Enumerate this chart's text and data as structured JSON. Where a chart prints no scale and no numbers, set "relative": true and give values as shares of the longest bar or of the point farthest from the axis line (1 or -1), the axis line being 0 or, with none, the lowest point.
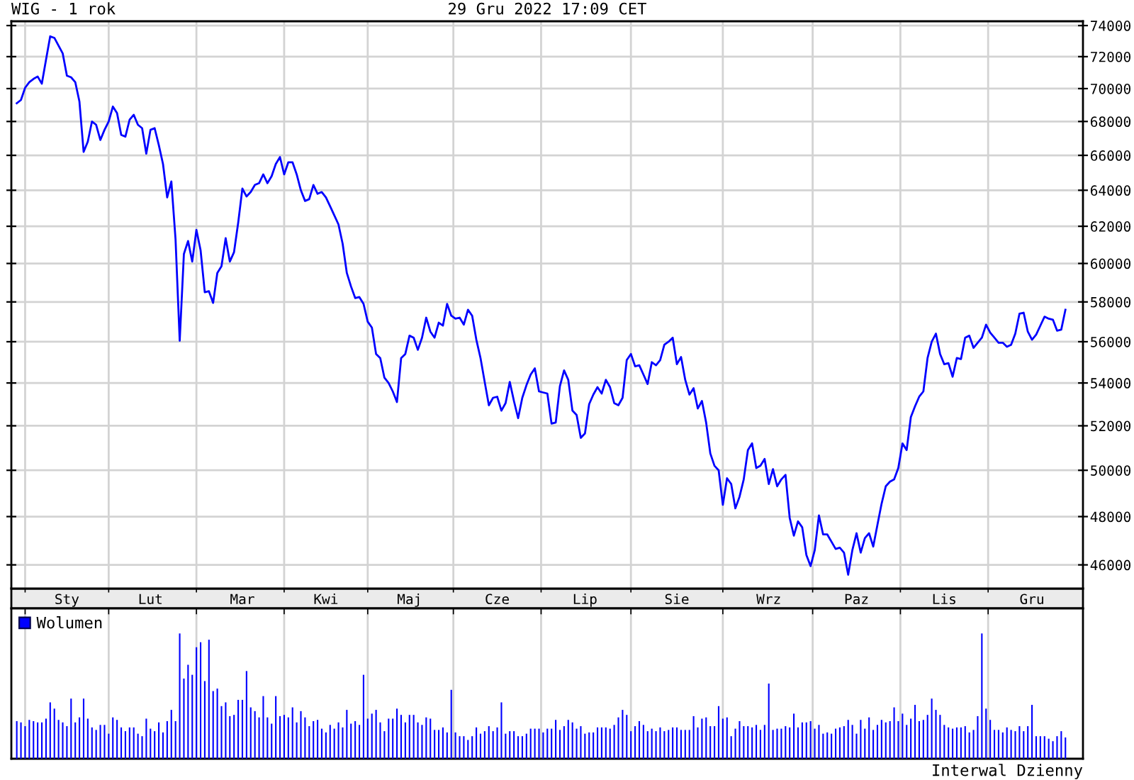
{
  "chart_data": [
    {
      "type": "line",
      "title": "WIG - 1 rok",
      "subtitle": "29 Gru 2022 17:09 CET",
      "categories": [
        null,
        null,
        null,
        null,
        null,
        null,
        null,
        null,
        null,
        null,
        null,
        null,
        "Sty",
        null,
        null,
        null,
        null,
        null,
        null,
        null,
        null,
        null,
        null,
        null,
        null,
        null,
        null,
        null,
        null,
        null,
        null,
        null,
        "Lut",
        null,
        null,
        null,
        null,
        null,
        null,
        null,
        null,
        null,
        null,
        null,
        null,
        null,
        null,
        null,
        null,
        null,
        null,
        null,
        null,
        null,
        "Mar",
        null,
        null,
        null,
        null,
        null,
        null,
        null,
        null,
        null,
        null,
        null,
        null,
        null,
        null,
        null,
        null,
        null,
        null,
        null,
        "Kwi",
        null,
        null,
        null,
        null,
        null,
        null,
        null,
        null,
        null,
        null,
        null,
        null,
        null,
        null,
        null,
        null,
        null,
        null,
        null,
        "Maj",
        null,
        null,
        null,
        null,
        null,
        null,
        null,
        null,
        null,
        null,
        null,
        null,
        null,
        null,
        null,
        null,
        null,
        null,
        null,
        null,
        "Cze",
        null,
        null,
        null,
        null,
        null,
        null,
        null,
        null,
        null,
        null,
        null,
        null,
        null,
        null,
        null,
        null,
        null,
        null,
        null,
        null,
        "Lip",
        null,
        null,
        null,
        null,
        null,
        null,
        null,
        null,
        null,
        null,
        null,
        null,
        null,
        null,
        null,
        null,
        null,
        null,
        null,
        null,
        null,
        "Sie",
        null,
        null,
        null,
        null,
        null,
        null,
        null,
        null,
        null,
        null,
        null,
        null,
        null,
        null,
        null,
        null,
        null,
        null,
        null,
        null,
        null,
        "Wrz",
        null,
        null,
        null,
        null,
        null,
        null,
        null,
        null,
        null,
        null,
        null,
        null,
        null,
        null,
        null,
        null,
        null,
        null,
        null,
        null,
        "Paz",
        null,
        null,
        null,
        null,
        null,
        null,
        null,
        null,
        null,
        null,
        null,
        null,
        null,
        null,
        null,
        null,
        null,
        null,
        null,
        null,
        "Lis",
        null,
        null,
        null,
        null,
        null,
        null,
        null,
        null,
        null,
        null,
        null,
        null,
        null,
        null,
        null,
        null,
        null,
        null,
        null,
        null,
        "Gru",
        null,
        null,
        null,
        null,
        null,
        null,
        null,
        null
      ],
      "values": [
        69100,
        69300,
        70050,
        70400,
        70600,
        70750,
        70300,
        71800,
        73300,
        73200,
        72700,
        72200,
        70800,
        70700,
        70400,
        69200,
        66200,
        66800,
        68000,
        67800,
        66900,
        67500,
        68000,
        68900,
        68500,
        67200,
        67100,
        68100,
        68400,
        67800,
        67600,
        66100,
        67500,
        67600,
        66600,
        65500,
        63600,
        64500,
        61300,
        56050,
        60500,
        61200,
        60100,
        61800,
        60700,
        58500,
        58550,
        57950,
        59500,
        59850,
        61350,
        60100,
        60600,
        62200,
        64100,
        63650,
        63900,
        64300,
        64400,
        64900,
        64400,
        64800,
        65500,
        65900,
        64900,
        65600,
        65600,
        64900,
        64000,
        63400,
        63500,
        64300,
        63800,
        63900,
        63600,
        63100,
        62600,
        62100,
        61050,
        59500,
        58800,
        58200,
        58250,
        57900,
        57000,
        56700,
        55400,
        55200,
        54250,
        54000,
        53600,
        53100,
        55200,
        55400,
        56300,
        56200,
        55600,
        56200,
        57200,
        56500,
        56200,
        56950,
        56800,
        57900,
        57300,
        57150,
        57200,
        56850,
        57600,
        57300,
        56100,
        55200,
        54050,
        52950,
        53300,
        53350,
        52700,
        53050,
        54050,
        53150,
        52350,
        53300,
        53900,
        54400,
        54700,
        53600,
        53550,
        53500,
        52100,
        52150,
        53850,
        54600,
        54150,
        52700,
        52500,
        51450,
        51650,
        53000,
        53450,
        53800,
        53500,
        54150,
        53800,
        53050,
        52950,
        53300,
        55100,
        55400,
        54800,
        54850,
        54400,
        53950,
        55000,
        54850,
        55100,
        55850,
        56000,
        56200,
        54900,
        55250,
        54150,
        53450,
        53750,
        52800,
        53150,
        52150,
        50750,
        50200,
        50000,
        48500,
        49650,
        49400,
        48350,
        48850,
        49600,
        50900,
        51200,
        50100,
        50200,
        50500,
        49400,
        50050,
        49300,
        49600,
        49800,
        47950,
        47200,
        47800,
        47550,
        46400,
        45950,
        46600,
        48050,
        47250,
        47250,
        46950,
        46650,
        46700,
        46500,
        45600,
        46600,
        47300,
        46500,
        47100,
        47300,
        46750,
        47650,
        48550,
        49300,
        49500,
        49600,
        50100,
        51200,
        50900,
        52400,
        52900,
        53350,
        53600,
        55200,
        56000,
        56400,
        55400,
        54900,
        54950,
        54300,
        55200,
        55150,
        56200,
        56300,
        55700,
        55950,
        56200,
        56850,
        56450,
        56200,
        55950,
        55950,
        55750,
        55850,
        56400,
        57400,
        57450,
        56500,
        56100,
        56350,
        56800,
        57250,
        57150,
        57100,
        56550,
        56600,
        57600
      ],
      "color": "#0000ff",
      "log": true,
      "ylim": [
        45050,
        74280
      ],
      "yticks": [
        46000,
        48000,
        50000,
        52000,
        54000,
        56000,
        58000,
        60000,
        62000,
        64000,
        66000,
        68000,
        70000,
        72000,
        74000
      ],
      "grid": true
    },
    {
      "type": "bar",
      "relative": true,
      "categories": [
        null,
        null,
        null,
        null,
        null,
        null,
        null,
        null,
        null,
        null,
        null,
        null,
        null,
        null,
        null,
        null,
        null,
        null,
        null,
        null,
        null,
        null,
        null,
        null,
        null,
        null,
        null,
        null,
        null,
        null,
        null,
        null,
        null,
        null,
        null,
        null,
        null,
        null,
        null,
        null,
        null,
        null,
        null,
        null,
        null,
        null,
        null,
        null,
        null,
        null,
        null,
        null,
        null,
        null,
        null,
        null,
        null,
        null,
        null,
        null,
        null,
        null,
        null,
        null,
        null,
        null,
        null,
        null,
        null,
        null,
        null,
        null,
        null,
        null,
        null,
        null,
        null,
        null,
        null,
        null,
        null,
        null,
        null,
        null,
        null,
        null,
        null,
        null,
        null,
        null,
        null,
        null,
        null,
        null,
        null,
        null,
        null,
        null,
        null,
        null,
        null,
        null,
        null,
        null,
        null,
        null,
        null,
        null,
        null,
        null,
        null,
        null,
        null,
        null,
        null,
        null,
        null,
        null,
        null,
        null,
        null,
        null,
        null,
        null,
        null,
        null,
        null,
        null,
        null,
        null,
        null,
        null,
        null,
        null,
        null,
        null,
        null,
        null,
        null,
        null,
        null,
        null,
        null,
        null,
        null,
        null,
        null,
        null,
        null,
        null,
        null,
        null,
        null,
        null,
        null,
        null,
        null,
        null,
        null,
        null,
        null,
        null,
        null,
        null,
        null,
        null,
        null,
        null,
        null,
        null,
        null,
        null,
        null,
        null,
        null,
        null,
        null,
        null,
        null,
        null,
        null,
        null,
        null,
        null,
        null,
        null,
        null,
        null,
        null,
        null,
        null,
        null,
        null,
        null,
        null,
        null,
        null,
        null,
        null,
        null,
        null,
        null,
        null,
        null,
        null,
        null,
        null,
        null,
        null,
        null,
        null,
        null,
        null,
        null,
        null,
        null,
        null,
        null,
        null,
        null,
        null,
        null,
        null,
        null,
        null,
        null,
        null,
        null,
        null,
        null,
        null,
        null,
        null,
        null,
        null,
        null,
        null,
        null,
        null,
        null,
        null,
        null,
        null,
        null,
        null,
        null,
        null,
        null,
        null,
        null,
        null,
        null
      ],
      "series": [
        {
          "name": "Wolumen",
          "color": "#0000ff",
          "values": [
            0.3,
            0.29,
            0.26,
            0.31,
            0.3,
            0.29,
            0.29,
            0.32,
            0.45,
            0.4,
            0.31,
            0.29,
            0.26,
            0.48,
            0.29,
            0.33,
            0.48,
            0.32,
            0.25,
            0.23,
            0.27,
            0.27,
            0.2,
            0.33,
            0.31,
            0.25,
            0.22,
            0.25,
            0.25,
            0.2,
            0.18,
            0.32,
            0.24,
            0.22,
            0.29,
            0.21,
            0.3,
            0.39,
            0.3,
            1,
            0.64,
            0.75,
            0.67,
            0.89,
            0.93,
            0.62,
            0.95,
            0.54,
            0.56,
            0.42,
            0.45,
            0.34,
            0.35,
            0.47,
            0.47,
            0.7,
            0.41,
            0.38,
            0.33,
            0.5,
            0.33,
            0.28,
            0.5,
            0.34,
            0.35,
            0.33,
            0.41,
            0.29,
            0.38,
            0.33,
            0.26,
            0.3,
            0.31,
            0.24,
            0.21,
            0.27,
            0.24,
            0.29,
            0.25,
            0.39,
            0.28,
            0.3,
            0.27,
            0.67,
            0.32,
            0.36,
            0.39,
            0.29,
            0.22,
            0.32,
            0.32,
            0.4,
            0.35,
            0.29,
            0.35,
            0.35,
            0.29,
            0.27,
            0.33,
            0.32,
            0.23,
            0.23,
            0.25,
            0.21,
            0.55,
            0.21,
            0.18,
            0.18,
            0.15,
            0.18,
            0.25,
            0.2,
            0.22,
            0.26,
            0.22,
            0.25,
            0.45,
            0.2,
            0.22,
            0.22,
            0.18,
            0.18,
            0.2,
            0.24,
            0.24,
            0.24,
            0.21,
            0.24,
            0.24,
            0.31,
            0.23,
            0.26,
            0.31,
            0.29,
            0.24,
            0.26,
            0.2,
            0.21,
            0.21,
            0.25,
            0.25,
            0.25,
            0.24,
            0.27,
            0.33,
            0.39,
            0.35,
            0.22,
            0.26,
            0.3,
            0.27,
            0.22,
            0.24,
            0.22,
            0.25,
            0.22,
            0.23,
            0.25,
            0.25,
            0.23,
            0.23,
            0.23,
            0.34,
            0.25,
            0.32,
            0.33,
            0.26,
            0.26,
            0.42,
            0.32,
            0.33,
            0.18,
            0.24,
            0.3,
            0.26,
            0.26,
            0.25,
            0.27,
            0.23,
            0.27,
            0.6,
            0.23,
            0.24,
            0.24,
            0.26,
            0.25,
            0.36,
            0.25,
            0.29,
            0.29,
            0.3,
            0.24,
            0.27,
            0.2,
            0.21,
            0.2,
            0.24,
            0.25,
            0.26,
            0.31,
            0.27,
            0.2,
            0.31,
            0.24,
            0.33,
            0.23,
            0.27,
            0.31,
            0.29,
            0.3,
            0.41,
            0.3,
            0.36,
            0.27,
            0.32,
            0.43,
            0.3,
            0.31,
            0.35,
            0.48,
            0.39,
            0.35,
            0.27,
            0.25,
            0.24,
            0.25,
            0.25,
            0.26,
            0.21,
            0.23,
            0.34,
            1,
            0.4,
            0.31,
            0.23,
            0.23,
            0.21,
            0.25,
            0.23,
            0.22,
            0.26,
            0.22,
            0.26,
            0.43,
            0.18,
            0.18,
            0.18,
            0.16,
            0.14,
            0.18,
            0.22,
            0.17
          ]
        }
      ],
      "tick_labels": false,
      "grid": "x",
      "legend": "top left",
      "annotations": [
        "Interwal Dzienny"
      ]
    }
  ]
}
